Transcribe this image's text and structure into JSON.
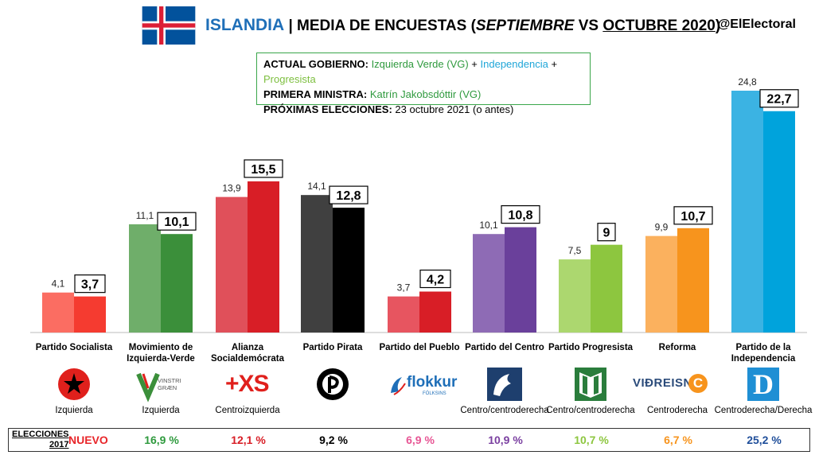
{
  "header": {
    "country": "ISLANDIA",
    "sep": " | MEDIA DE ENCUESTAS (",
    "month1": "SEPTIEMBRE",
    "vs": " VS ",
    "month2": "OCTUBRE 2020",
    "close": ")",
    "handle": "@ElElectoral"
  },
  "info": {
    "gov_label": "ACTUAL GOBIERNO:",
    "gov_vg": "Izquierda Verde (VG)",
    "plus": " + ",
    "gov_ind": "Independencia",
    "gov_prog": "Progresista",
    "pm_label": "PRIMERA MINISTRA:",
    "pm_value": "Katrín Jakobsdóttir (VG)",
    "next_label": "PRÓXIMAS ELECCIONES:",
    "next_value": "23 octubre 2021 (o antes)"
  },
  "chart_data": {
    "type": "bar",
    "categories": [
      "Partido Socialista",
      "Movimiento de Izquierda-Verde",
      "Alianza Socialdemócrata",
      "Partido Pirata",
      "Partido del Pueblo",
      "Partido del Centro",
      "Partido Progresista",
      "Reforma",
      "Partido de la Independencia"
    ],
    "category_lines": [
      [
        "Partido Socialista"
      ],
      [
        "Movimiento de",
        "Izquierda-Verde"
      ],
      [
        "Alianza",
        "Socialdemócrata"
      ],
      [
        "Partido Pirata"
      ],
      [
        "Partido del Pueblo"
      ],
      [
        "Partido del Centro"
      ],
      [
        "Partido Progresista"
      ],
      [
        "Reforma"
      ],
      [
        "Partido de la",
        "Independencia"
      ]
    ],
    "series": [
      {
        "name": "SEPTIEMBRE",
        "values": [
          4.1,
          11.1,
          13.9,
          14.1,
          3.7,
          10.1,
          7.5,
          9.9,
          24.8
        ],
        "labels": [
          "4,1",
          "11,1",
          "13,9",
          "14,1",
          "3,7",
          "10,1",
          "7,5",
          "9,9",
          "24,8"
        ]
      },
      {
        "name": "OCTUBRE 2020",
        "values": [
          3.7,
          10.1,
          15.5,
          12.8,
          4.2,
          10.8,
          9,
          10.7,
          22.7
        ],
        "labels": [
          "3,7",
          "10,1",
          "15,5",
          "12,8",
          "4,2",
          "10,8",
          "9",
          "10,7",
          "22,7"
        ]
      }
    ],
    "colors_sep": [
      "#fb6d62",
      "#6fae6a",
      "#e0505a",
      "#404040",
      "#e75560",
      "#8e6bb5",
      "#acd76f",
      "#fbb15e",
      "#3bb3e3"
    ],
    "colors_oct": [
      "#f53b30",
      "#3b8f3a",
      "#d81e26",
      "#000000",
      "#d81e26",
      "#6a409b",
      "#8dc63f",
      "#f7941d",
      "#00a3dc"
    ],
    "ylim": [
      0,
      26
    ]
  },
  "parties": [
    {
      "logo": "star-fist",
      "ideology": "Izquierda",
      "elections_2017": "NUEVO"
    },
    {
      "logo": "vinstri-graen",
      "logo_text": "VINSTRI GRÆN",
      "ideology": "Izquierda",
      "elections_2017": "16,9 %"
    },
    {
      "logo": "xs",
      "logo_text": "XS",
      "ideology": "Centroizquierda",
      "elections_2017": "12,1 %"
    },
    {
      "logo": "pirate",
      "ideology": "",
      "elections_2017": "9,2 %"
    },
    {
      "logo": "flokkur",
      "logo_text": "flokkur",
      "logo_sub": "FÓLKSINS",
      "ideology": "",
      "elections_2017": "6,9 %"
    },
    {
      "logo": "centre-horse",
      "ideology": "Centro/centroderecha",
      "elections_2017": "10,9 %"
    },
    {
      "logo": "progressive-book",
      "ideology": "Centro/centroderecha",
      "elections_2017": "10,7 %"
    },
    {
      "logo": "vidreisn",
      "logo_text": "VIÐREISN",
      "logo_letter": "C",
      "ideology": "Centroderecha",
      "elections_2017": "6,7 %"
    },
    {
      "logo": "d-letter",
      "logo_letter": "D",
      "ideology": "Centroderecha/Derecha",
      "elections_2017": "25,2 %"
    }
  ],
  "footer": {
    "label_line1": "ELECCIONES",
    "label_line2": "2017",
    "value_colors": [
      "#e8262a",
      "#2f9a3e",
      "#d81e26",
      "#000000",
      "#e75594",
      "#7a3fa0",
      "#8dc63f",
      "#f7941d",
      "#1f4e9a"
    ]
  }
}
